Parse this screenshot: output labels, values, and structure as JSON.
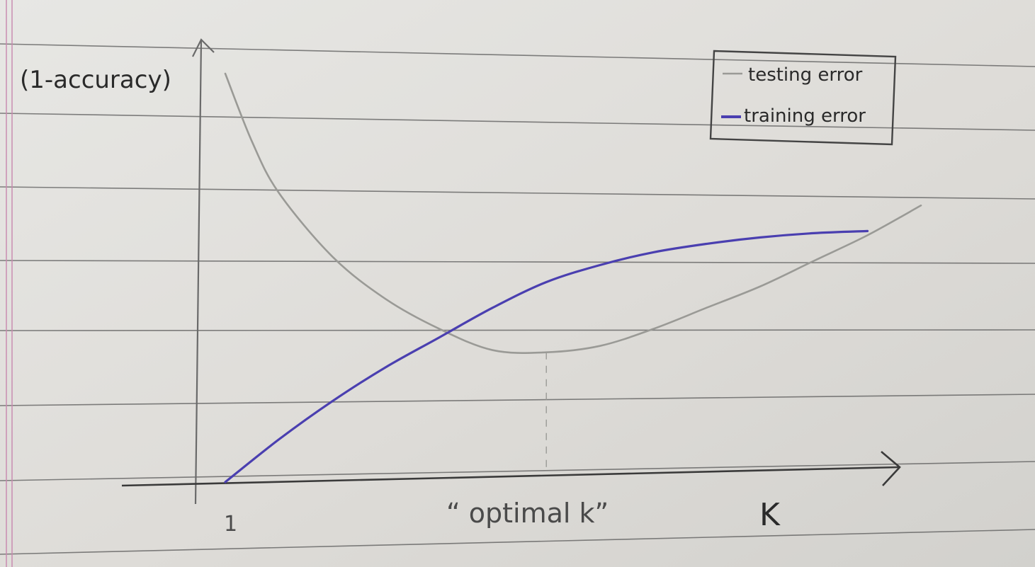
{
  "chart_data": {
    "type": "line",
    "title": "",
    "ylabel": "(1-accuracy)",
    "xlabel": "K",
    "x_tick_label": "1",
    "annotation": "“ optimal k”",
    "ylim": [
      0,
      1
    ],
    "legend_position": "top-right",
    "grid": false,
    "series": [
      {
        "name": "testing error",
        "color": "#9a9a96",
        "x": [
          0.0,
          0.5,
          1.0,
          2.0,
          3.0,
          4.0,
          5.0,
          6.0,
          7.0,
          8.0,
          9.0,
          10.0,
          11.0,
          12.0,
          13.0
        ],
        "values": [
          0.96,
          0.8,
          0.68,
          0.53,
          0.43,
          0.36,
          0.31,
          0.305,
          0.32,
          0.36,
          0.41,
          0.46,
          0.52,
          0.58,
          0.65
        ]
      },
      {
        "name": "training error",
        "color": "#4a3fb0",
        "x": [
          0.0,
          1.0,
          2.0,
          3.0,
          4.0,
          5.0,
          6.0,
          7.0,
          8.0,
          9.0,
          10.0,
          11.0,
          12.0
        ],
        "values": [
          0.0,
          0.1,
          0.19,
          0.27,
          0.34,
          0.41,
          0.47,
          0.51,
          0.54,
          0.56,
          0.575,
          0.585,
          0.59
        ]
      }
    ],
    "optimal_k_x": 6.0
  }
}
